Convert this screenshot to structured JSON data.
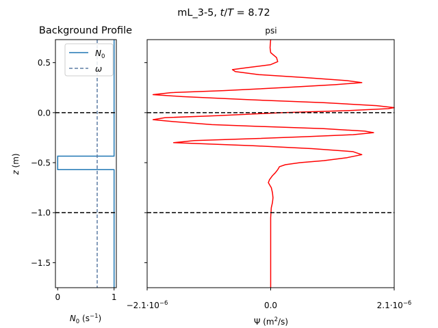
{
  "suptitle": "mL_3-5, t/T = 8.72",
  "suptitle_parts": [
    "mL_3-5, ",
    "t",
    "/",
    "T",
    " = 8.72"
  ],
  "left_panel": {
    "title": "Background Profile",
    "xlabel_symbol": "N",
    "xlabel_sub": "0",
    "xlabel_unit": " (s",
    "xlabel_exp": "−1",
    "xlabel_close": ")",
    "ylabel_italic": "z",
    "ylabel_unit": " (m)",
    "legend": [
      {
        "symbol": "N",
        "sub": "0",
        "color": "#1f77b4",
        "style": "solid"
      },
      {
        "symbol": "ω",
        "sub": "",
        "color": "#5b7ca3",
        "style": "dashed"
      }
    ],
    "xticks": [
      "0",
      "1"
    ],
    "yticks": [
      "0.5",
      "0.0",
      "−0.5",
      "−1.0",
      "−1.5"
    ]
  },
  "right_panel": {
    "title": "psi",
    "xlabel": "Ψ (m²/s)",
    "xlabel_parts": [
      "Ψ (m",
      "2",
      "/s)"
    ],
    "xticks": [
      {
        "base": "−2.1·10",
        "exp": "−6"
      },
      {
        "base": "0.0",
        "exp": ""
      },
      {
        "base": "2.1·10",
        "exp": "−6"
      }
    ]
  },
  "chart_data": [
    {
      "type": "line",
      "panel": "Background Profile",
      "xlim": [
        -0.04,
        1.04
      ],
      "ylim": [
        -1.75,
        0.73
      ],
      "series": [
        {
          "name": "N0",
          "color": "#1f77b4",
          "points": [
            [
              1,
              0.73
            ],
            [
              1,
              -0.435
            ],
            [
              0,
              -0.435
            ],
            [
              0,
              -0.57
            ],
            [
              1,
              -0.57
            ],
            [
              1,
              -1.75
            ]
          ]
        },
        {
          "name": "ω",
          "color": "#5b7ca3",
          "style": "dashed",
          "points": [
            [
              0.7,
              0.73
            ],
            [
              0.7,
              -1.75
            ]
          ]
        }
      ],
      "hlines": [
        0.0,
        -1.0
      ]
    },
    {
      "type": "line",
      "panel": "psi",
      "xlim": [
        -2.1e-06,
        2.1e-06
      ],
      "ylim": [
        -1.75,
        0.73
      ],
      "series": [
        {
          "name": "",
          "color": "#ff0000",
          "points": [
            [
              0,
              -1.75
            ],
            [
              0,
              -1.4
            ],
            [
              0,
              -1.2
            ],
            [
              0,
              -1.05
            ],
            [
              1e-08,
              -0.95
            ],
            [
              3e-08,
              -0.9
            ],
            [
              4e-08,
              -0.85
            ],
            [
              3e-08,
              -0.8
            ],
            [
              1e-08,
              -0.75
            ],
            [
              -2e-08,
              -0.72
            ],
            [
              -4e-08,
              -0.7
            ],
            [
              -2e-08,
              -0.67
            ],
            [
              3e-08,
              -0.63
            ],
            [
              8e-08,
              -0.6
            ],
            [
              1.2e-07,
              -0.57
            ],
            [
              1.5e-07,
              -0.54
            ],
            [
              2.5e-07,
              -0.52
            ],
            [
              5e-07,
              -0.5
            ],
            [
              9e-07,
              -0.48
            ],
            [
              1.3e-06,
              -0.45
            ],
            [
              1.55e-06,
              -0.42
            ],
            [
              1.4e-06,
              -0.39
            ],
            [
              7e-07,
              -0.36
            ],
            [
              -3e-07,
              -0.33
            ],
            [
              -1.2e-06,
              -0.31
            ],
            [
              -1.65e-06,
              -0.3
            ],
            [
              -1.3e-06,
              -0.28
            ],
            [
              -3e-07,
              -0.26
            ],
            [
              6e-07,
              -0.24
            ],
            [
              1.4e-06,
              -0.22
            ],
            [
              1.75e-06,
              -0.2
            ],
            [
              1.6e-06,
              -0.185
            ],
            [
              9e-07,
              -0.16
            ],
            [
              -1e-07,
              -0.14
            ],
            [
              -1e-06,
              -0.12
            ],
            [
              -1.65e-06,
              -0.09
            ],
            [
              -2e-06,
              -0.07
            ],
            [
              -1.8e-06,
              -0.05
            ],
            [
              -9e-07,
              -0.03
            ],
            [
              2e-07,
              0.0
            ],
            [
              1.3e-06,
              0.02
            ],
            [
              2e-06,
              0.04
            ],
            [
              2.1e-06,
              0.05
            ],
            [
              1.8e-06,
              0.07
            ],
            [
              9e-07,
              0.1
            ],
            [
              -4e-07,
              0.13
            ],
            [
              -1.5e-06,
              0.16
            ],
            [
              -2e-06,
              0.18
            ],
            [
              -1.7e-06,
              0.2
            ],
            [
              -8e-07,
              0.22
            ],
            [
              2e-07,
              0.25
            ],
            [
              1.1e-06,
              0.28
            ],
            [
              1.55e-06,
              0.3
            ],
            [
              1.3e-06,
              0.32
            ],
            [
              6e-07,
              0.35
            ],
            [
              -2e-07,
              0.38
            ],
            [
              -6e-07,
              0.41
            ],
            [
              -6.5e-07,
              0.43
            ],
            [
              -4e-07,
              0.45
            ],
            [
              0,
              0.48
            ],
            [
              1.2e-07,
              0.51
            ],
            [
              1e-07,
              0.55
            ],
            [
              0,
              0.6
            ],
            [
              -1e-08,
              0.65
            ],
            [
              0,
              0.73
            ]
          ]
        }
      ],
      "hlines": [
        0.0,
        -1.0
      ]
    }
  ]
}
